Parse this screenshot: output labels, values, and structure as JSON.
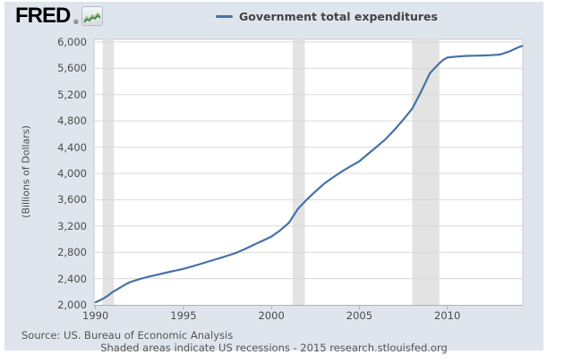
{
  "header": {
    "logo_text": "FRED",
    "logo_mark": "®",
    "logo_icon": "green-sparkline-icon"
  },
  "legend": {
    "label": "Government total expenditures",
    "color": "#4572a7"
  },
  "footer": {
    "source": "Source: US. Bureau of Economic Analysis",
    "note": "Shaded areas indicate US recessions - 2015 research.stlouisfed.org"
  },
  "colors": {
    "canvas_bg": "#dee5ed",
    "plot_bg": "#ffffff",
    "plot_border": "#c5cbd3",
    "gridline": "#d8d8d8",
    "recession_band": "#e3e3e3",
    "axis_line": "#a5b2c1",
    "series_line": "#4572a7",
    "tick_text": "#4d4d4d",
    "footer_text": "#555555",
    "logo_text": "#000000"
  },
  "chart_data": {
    "type": "line",
    "title": "Government total expenditures",
    "xlabel": "",
    "ylabel": "(Billions of Dollars)",
    "xlim": [
      1989.92,
      2014.29
    ],
    "ylim": [
      2000,
      6040
    ],
    "grid": true,
    "legend_position": "top-center",
    "x_ticks": [
      "1990",
      "1995",
      "2000",
      "2005",
      "2010"
    ],
    "x_tick_values": [
      1990,
      1995,
      2000,
      2005,
      2010
    ],
    "y_ticks": [
      "2,000",
      "2,400",
      "2,800",
      "3,200",
      "3,600",
      "4,000",
      "4,400",
      "4,800",
      "5,200",
      "5,600",
      "6,000"
    ],
    "y_tick_values": [
      2000,
      2400,
      2800,
      3200,
      3600,
      4000,
      4400,
      4800,
      5200,
      5600,
      6000
    ],
    "recession_bands": [
      [
        1990.4,
        1991.05
      ],
      [
        2001.2,
        2001.9
      ],
      [
        2008.0,
        2009.55
      ]
    ],
    "series": [
      {
        "name": "Government total expenditures",
        "color": "#4572a7",
        "points": [
          [
            1990.0,
            2040
          ],
          [
            1990.25,
            2070
          ],
          [
            1990.5,
            2105
          ],
          [
            1990.75,
            2150
          ],
          [
            1991.0,
            2200
          ],
          [
            1991.25,
            2240
          ],
          [
            1991.5,
            2280
          ],
          [
            1991.75,
            2318
          ],
          [
            1992.0,
            2350
          ],
          [
            1992.5,
            2392
          ],
          [
            1993.0,
            2428
          ],
          [
            1993.5,
            2458
          ],
          [
            1994.0,
            2490
          ],
          [
            1994.5,
            2520
          ],
          [
            1995.0,
            2548
          ],
          [
            1995.5,
            2586
          ],
          [
            1996.0,
            2626
          ],
          [
            1996.5,
            2666
          ],
          [
            1997.0,
            2706
          ],
          [
            1997.5,
            2748
          ],
          [
            1998.0,
            2792
          ],
          [
            1998.5,
            2850
          ],
          [
            1999.0,
            2915
          ],
          [
            1999.5,
            2976
          ],
          [
            2000.0,
            3040
          ],
          [
            2000.5,
            3135
          ],
          [
            2001.0,
            3250
          ],
          [
            2001.5,
            3460
          ],
          [
            2002.0,
            3600
          ],
          [
            2002.5,
            3725
          ],
          [
            2003.0,
            3845
          ],
          [
            2003.5,
            3940
          ],
          [
            2004.0,
            4030
          ],
          [
            2004.5,
            4110
          ],
          [
            2005.0,
            4185
          ],
          [
            2005.5,
            4300
          ],
          [
            2006.0,
            4410
          ],
          [
            2006.5,
            4525
          ],
          [
            2007.0,
            4665
          ],
          [
            2007.5,
            4820
          ],
          [
            2008.0,
            4985
          ],
          [
            2008.5,
            5240
          ],
          [
            2009.0,
            5520
          ],
          [
            2009.25,
            5595
          ],
          [
            2009.5,
            5665
          ],
          [
            2009.75,
            5725
          ],
          [
            2010.0,
            5765
          ],
          [
            2010.5,
            5778
          ],
          [
            2011.0,
            5788
          ],
          [
            2011.5,
            5792
          ],
          [
            2012.0,
            5795
          ],
          [
            2012.5,
            5800
          ],
          [
            2013.0,
            5810
          ],
          [
            2013.5,
            5855
          ],
          [
            2014.0,
            5915
          ],
          [
            2014.25,
            5940
          ]
        ]
      }
    ]
  }
}
